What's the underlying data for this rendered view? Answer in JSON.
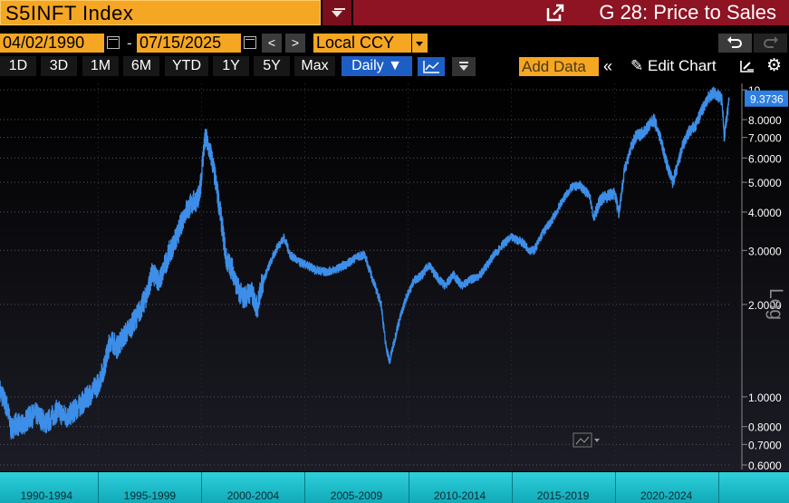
{
  "header": {
    "ticker": "S5INFT Index",
    "title": "G 28: Price to Sales"
  },
  "controls": {
    "start_date": "04/02/1990",
    "date_separator": "-",
    "end_date": "07/15/2025",
    "prev_label": "<",
    "next_label": ">",
    "currency": "Local CCY",
    "timeframes": [
      "1D",
      "3D",
      "1M",
      "6M",
      "YTD",
      "1Y",
      "5Y",
      "Max"
    ],
    "frequency": "Daily ▼",
    "add_data": "Add Data",
    "collapse": "«",
    "edit_chart": "Edit Chart"
  },
  "colors": {
    "accent_orange": "#f5a623",
    "title_red": "#8e1323",
    "line_blue": "#3d8ee8",
    "selected_blue": "#1d5ec4",
    "year_bar": "#1cbfcb"
  },
  "icons": [
    "export-icon",
    "calendar-icon",
    "line-chart-icon",
    "filter-icon",
    "collapse-icon",
    "pencil-icon",
    "chart-tool-icon",
    "gear-icon",
    "undo-icon",
    "redo-icon"
  ],
  "chart_data": {
    "type": "line",
    "scale": "log",
    "axis_label": "Log",
    "ylim": [
      0.58,
      10.5
    ],
    "last_value_label": "9.3736",
    "y_ticks": [
      "10",
      "8.0000",
      "7.0000",
      "6.0000",
      "5.0000",
      "4.0000",
      "3.0000",
      "2.0000",
      "1.0000",
      "0.8000",
      "0.7000",
      "0.6000"
    ],
    "y_tick_values": [
      10,
      8,
      7,
      6,
      5,
      4,
      3,
      2,
      1,
      0.8,
      0.7,
      0.6
    ],
    "x_range": [
      1990.25,
      2025.54
    ],
    "x_labels": [
      "1990-1994",
      "1995-1999",
      "2000-2004",
      "2005-2009",
      "2010-2014",
      "2015-2019",
      "2020-2024"
    ],
    "series": [
      {
        "x": [
          1990.25,
          1990.6,
          1990.8,
          1991.0,
          1991.3,
          1991.6,
          1992.0,
          1992.5,
          1993.0,
          1993.5,
          1994.0,
          1994.5,
          1995.0,
          1995.3,
          1995.6,
          1995.9,
          1996.3,
          1996.6,
          1997.0,
          1997.3,
          1997.6,
          1998.0,
          1998.4,
          1998.8,
          1999.2,
          1999.6,
          1999.9,
          2000.1,
          2000.2,
          2000.5,
          2000.8,
          2001.0,
          2001.2,
          2001.5,
          2001.7,
          2002.0,
          2002.4,
          2002.7,
          2002.9,
          2003.3,
          2003.7,
          2004.0,
          2004.3,
          2004.7,
          2005.0,
          2005.5,
          2006.0,
          2006.5,
          2007.0,
          2007.5,
          2007.9,
          2008.3,
          2008.7,
          2008.9,
          2009.1,
          2009.5,
          2009.9,
          2010.3,
          2010.7,
          2011.0,
          2011.5,
          2011.8,
          2012.2,
          2012.6,
          2013.0,
          2013.5,
          2014.0,
          2014.5,
          2015.0,
          2015.5,
          2015.9,
          2016.1,
          2016.5,
          2017.0,
          2017.5,
          2017.9,
          2018.3,
          2018.8,
          2018.98,
          2019.3,
          2019.6,
          2020.0,
          2020.2,
          2020.5,
          2020.8,
          2021.0,
          2021.4,
          2021.9,
          2022.2,
          2022.5,
          2022.8,
          2023.0,
          2023.3,
          2023.6,
          2023.9,
          2024.2,
          2024.5,
          2024.8,
          2025.0,
          2025.2,
          2025.3,
          2025.54
        ],
        "y": [
          1.05,
          0.92,
          0.78,
          0.82,
          0.8,
          0.85,
          0.88,
          0.82,
          0.9,
          0.86,
          0.92,
          1.0,
          1.1,
          1.25,
          1.55,
          1.45,
          1.6,
          1.7,
          1.9,
          2.1,
          2.5,
          2.4,
          2.9,
          3.3,
          4.0,
          4.3,
          4.5,
          6.3,
          7.0,
          6.0,
          4.5,
          3.6,
          2.8,
          2.6,
          2.3,
          2.1,
          2.2,
          1.95,
          2.3,
          2.7,
          3.1,
          3.3,
          2.9,
          2.75,
          2.7,
          2.6,
          2.55,
          2.6,
          2.7,
          2.85,
          2.9,
          2.4,
          2.0,
          1.5,
          1.3,
          1.7,
          2.1,
          2.4,
          2.5,
          2.7,
          2.4,
          2.3,
          2.5,
          2.3,
          2.4,
          2.5,
          2.8,
          3.1,
          3.3,
          3.2,
          3.0,
          3.0,
          3.4,
          3.8,
          4.4,
          4.8,
          4.9,
          4.5,
          3.8,
          4.4,
          4.5,
          4.6,
          4.0,
          5.6,
          6.5,
          7.0,
          7.3,
          8.0,
          7.0,
          5.8,
          5.0,
          5.5,
          6.6,
          7.3,
          7.6,
          8.5,
          9.4,
          9.8,
          9.6,
          9.3,
          7.0,
          9.37
        ]
      }
    ]
  }
}
